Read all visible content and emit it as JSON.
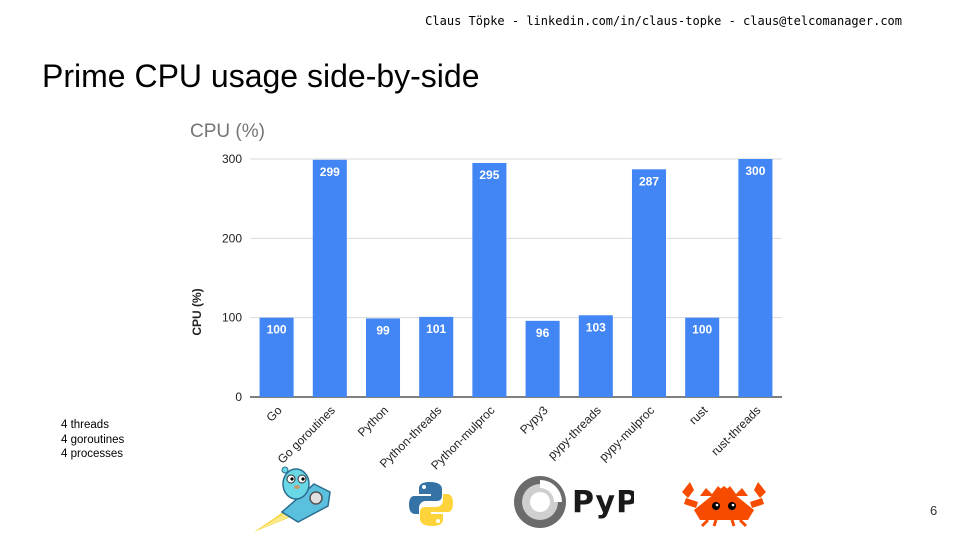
{
  "header": {
    "contact": "Claus Töpke - linkedin.com/in/claus-topke - claus@telcomanager.com"
  },
  "slide": {
    "title": "Prime CPU usage side-by-side",
    "page_number": "6",
    "notes": [
      "4 threads",
      "4 goroutines",
      "4 processes"
    ]
  },
  "logos": {
    "pypy_wordmark": "PyPy"
  },
  "colors": {
    "bar": "#4285f4",
    "grid": "#d9d9d9",
    "axis_text": "#222222",
    "title_text": "#757575"
  },
  "chart_data": {
    "type": "bar",
    "title": "CPU (%)",
    "xlabel": "",
    "ylabel": "CPU (%)",
    "ylim": [
      0,
      300
    ],
    "yticks": [
      0,
      100,
      200,
      300
    ],
    "grid": true,
    "categories": [
      "Go",
      "Go goroutines",
      "Python",
      "Python-threads",
      "Python-mulproc",
      "Pypy3",
      "pypy-threads",
      "pypy-mulproc",
      "rust",
      "rust-threads"
    ],
    "values": [
      100,
      299,
      99,
      101,
      295,
      96,
      103,
      287,
      100,
      300
    ],
    "data_labels": [
      "100",
      "299",
      "99",
      "101",
      "295",
      "96",
      "103",
      "287",
      "100",
      "300"
    ]
  }
}
